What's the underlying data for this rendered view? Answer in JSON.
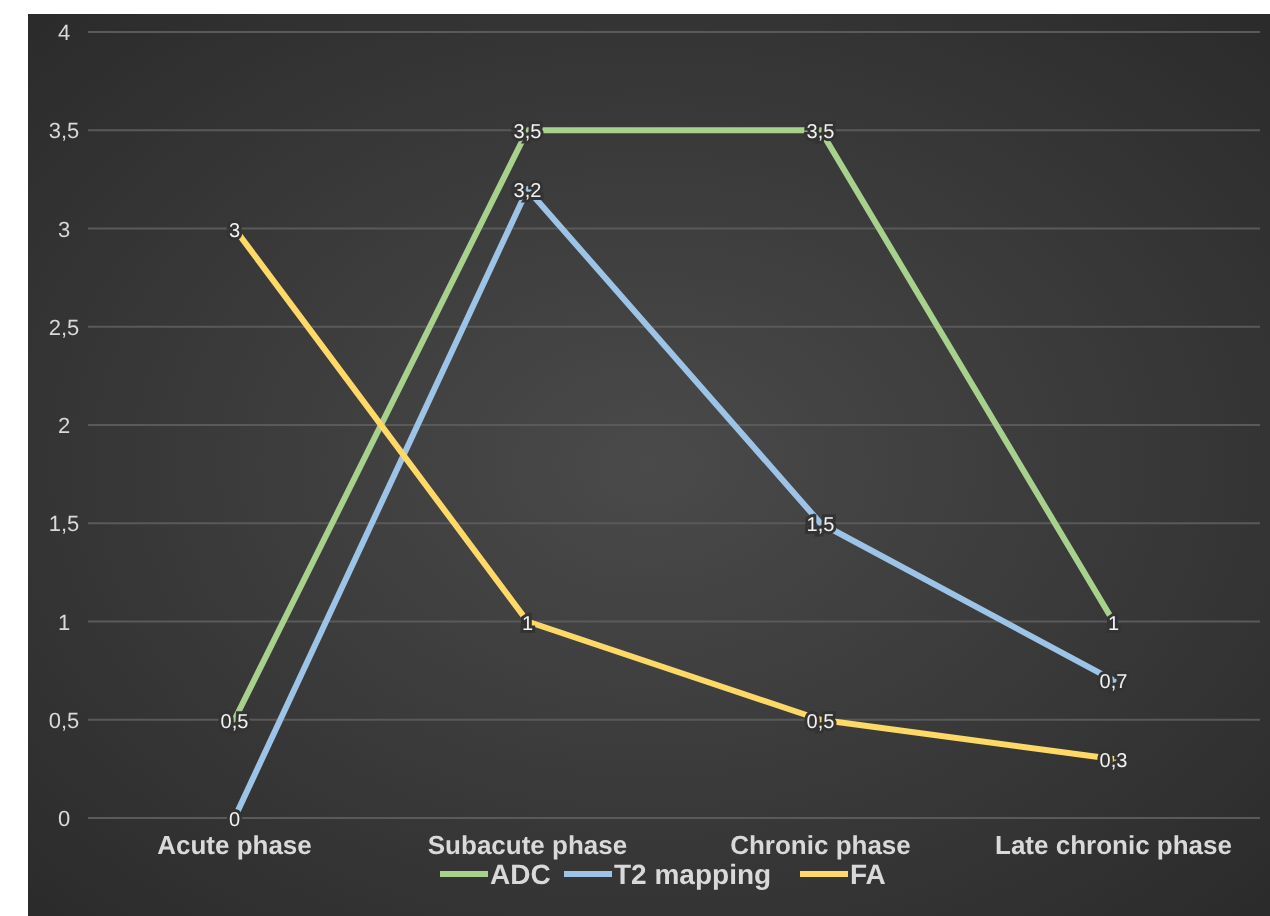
{
  "chart_data": {
    "type": "line",
    "categories": [
      "Acute phase",
      "Subacute phase",
      "Chronic phase",
      "Late chronic phase"
    ],
    "series": [
      {
        "name": "ADC",
        "color": "#a9d18e",
        "values": [
          0.5,
          3.5,
          3.5,
          1
        ],
        "value_labels": [
          "0,5",
          "3,5",
          "3,5",
          "1"
        ]
      },
      {
        "name": "T2 mapping",
        "color": "#9dc3e6",
        "values": [
          0,
          3.2,
          1.5,
          0.7
        ],
        "value_labels": [
          "0",
          "3,2",
          "1,5",
          "0,7"
        ]
      },
      {
        "name": "FA",
        "color": "#ffd966",
        "values": [
          3,
          1,
          0.5,
          0.3
        ],
        "value_labels": [
          "3",
          "1",
          "0,5",
          "0,3"
        ]
      }
    ],
    "ylim": [
      0,
      4
    ],
    "yticks": [
      0,
      {
        "value": 0.5,
        "label": "0,5"
      },
      1,
      {
        "value": 1.5,
        "label": "1,5"
      },
      2,
      {
        "value": 2.5,
        "label": "2,5"
      },
      3,
      {
        "value": 3.5,
        "label": "3,5"
      },
      4
    ],
    "grid": "y",
    "legend": "bottom",
    "marker": "none",
    "line_style": "solid"
  }
}
